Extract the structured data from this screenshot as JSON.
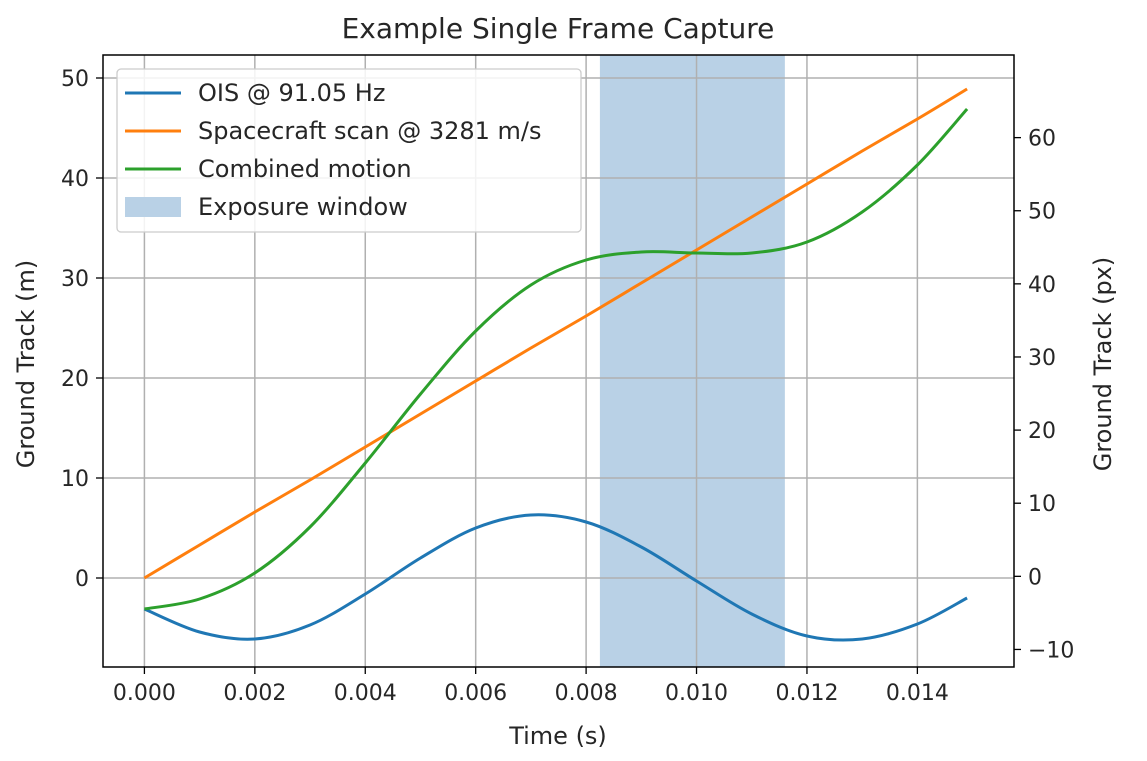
{
  "chart_data": {
    "type": "line",
    "title": "Example Single Frame Capture",
    "xlabel": "Time (s)",
    "ylabel": "Ground Track (m)",
    "y2label": "Ground Track (px)",
    "xlim": [
      -0.00075,
      0.01575
    ],
    "ylim": [
      -8.9,
      52.3
    ],
    "y2lim": [
      -12.4,
      71.3
    ],
    "x_ticks": [
      0.0,
      0.002,
      0.004,
      0.006,
      0.008,
      0.01,
      0.012,
      0.014
    ],
    "x_tick_labels": [
      "0.000",
      "0.002",
      "0.004",
      "0.006",
      "0.008",
      "0.010",
      "0.012",
      "0.014"
    ],
    "y_ticks": [
      0,
      10,
      20,
      30,
      40,
      50
    ],
    "y_tick_labels": [
      "0",
      "10",
      "20",
      "30",
      "40",
      "50"
    ],
    "y2_ticks": [
      -10,
      0,
      10,
      20,
      30,
      40,
      50,
      60
    ],
    "y2_tick_labels": [
      "−10",
      "0",
      "10",
      "20",
      "30",
      "40",
      "50",
      "60"
    ],
    "grid": true,
    "legend_placement": "top-left",
    "x": [
      0.0,
      0.001,
      0.002,
      0.003,
      0.004,
      0.005,
      0.006,
      0.007,
      0.008,
      0.009,
      0.01,
      0.011,
      0.012,
      0.013,
      0.014,
      0.0149
    ],
    "series": [
      {
        "name": "OIS @ 91.05 Hz",
        "color": "#1f77b4",
        "values": [
          -3.1,
          -5.4,
          -6.1,
          -4.7,
          -1.6,
          2.0,
          5.0,
          6.3,
          5.6,
          3.1,
          -0.3,
          -3.6,
          -5.8,
          -6.1,
          -4.6,
          -2.0
        ]
      },
      {
        "name": "Spacecraft scan @ 3281 m/s",
        "color": "#ff7f0e",
        "values": [
          0.0,
          3.3,
          6.6,
          9.8,
          13.1,
          16.4,
          19.7,
          23.0,
          26.2,
          29.5,
          32.8,
          36.1,
          39.4,
          42.7,
          45.9,
          48.9
        ]
      },
      {
        "name": "Combined motion",
        "color": "#2ca02c",
        "values": [
          -3.1,
          -2.1,
          0.5,
          5.1,
          11.5,
          18.4,
          24.7,
          29.3,
          31.8,
          32.6,
          32.5,
          32.5,
          33.6,
          36.6,
          41.3,
          46.9
        ]
      }
    ],
    "exposure_window": {
      "name": "Exposure window",
      "color": "#b9d1e6",
      "x_start": 0.00825,
      "x_end": 0.0116
    }
  }
}
